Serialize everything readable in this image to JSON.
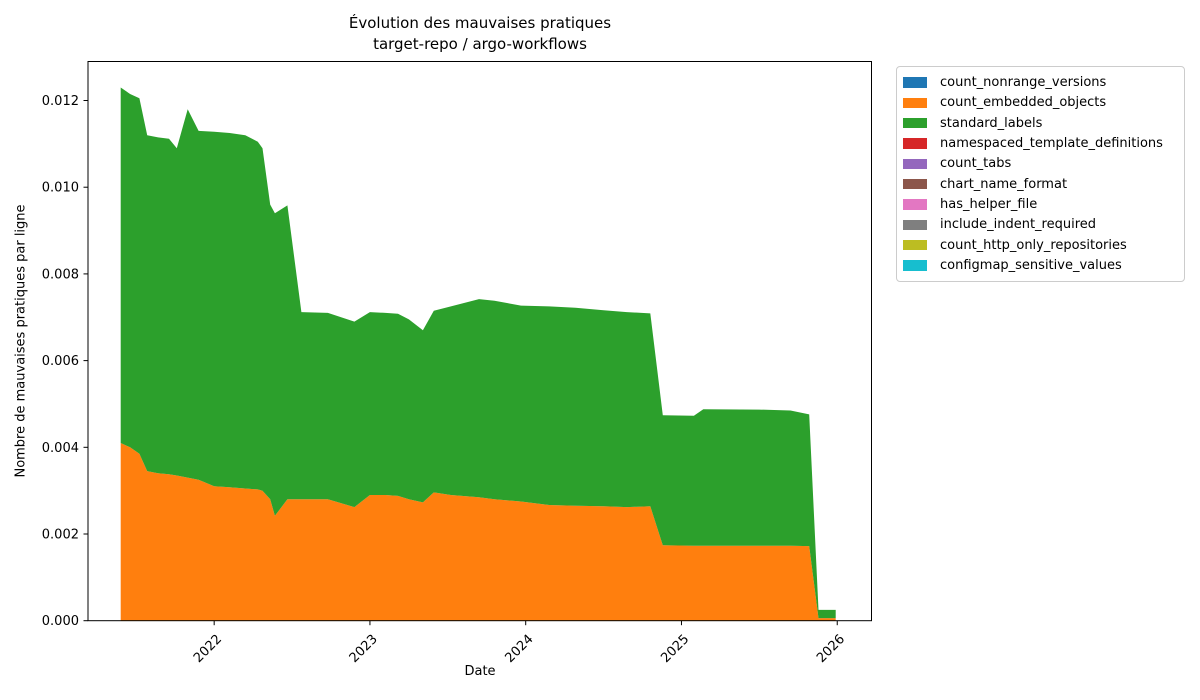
{
  "title": {
    "line1": "Évolution des mauvaises pratiques",
    "line2": "target-repo / argo-workflows"
  },
  "axes": {
    "xlabel": "Date",
    "ylabel": "Nombre de mauvaises pratiques par ligne",
    "x_tick_labels": [
      "2022",
      "2023",
      "2024",
      "2025",
      "2026"
    ],
    "y_tick_labels": [
      "0.000",
      "0.002",
      "0.004",
      "0.006",
      "0.008",
      "0.010",
      "0.012"
    ]
  },
  "legend": {
    "items": [
      {
        "label": "count_nonrange_versions",
        "color": "#1f77b4"
      },
      {
        "label": "count_embedded_objects",
        "color": "#ff7f0e"
      },
      {
        "label": "standard_labels",
        "color": "#2ca02c"
      },
      {
        "label": "namespaced_template_definitions",
        "color": "#d62728"
      },
      {
        "label": "count_tabs",
        "color": "#9467bd"
      },
      {
        "label": "chart_name_format",
        "color": "#8c564b"
      },
      {
        "label": "has_helper_file",
        "color": "#e377c2"
      },
      {
        "label": "include_indent_required",
        "color": "#7f7f7f"
      },
      {
        "label": "count_http_only_repositories",
        "color": "#bcbd22"
      },
      {
        "label": "configmap_sensitive_values",
        "color": "#17becf"
      }
    ]
  },
  "chart_data": {
    "type": "area",
    "stacked": true,
    "title": "Évolution des mauvaises pratiques — target-repo / argo-workflows",
    "xlabel": "Date",
    "ylabel": "Nombre de mauvaises pratiques par ligne",
    "legend_position": "outside upper right",
    "grid": false,
    "xlim": [
      2021.19,
      2026.22
    ],
    "ylim": [
      0,
      0.0129
    ],
    "x_tick_values": [
      2022,
      2023,
      2024,
      2025,
      2026
    ],
    "y_tick_values": [
      0,
      0.002,
      0.004,
      0.006,
      0.008,
      0.01,
      0.012
    ],
    "x": [
      2021.4,
      2021.46,
      2021.52,
      2021.57,
      2021.64,
      2021.71,
      2021.76,
      2021.83,
      2021.9,
      2022.0,
      2022.1,
      2022.2,
      2022.28,
      2022.31,
      2022.36,
      2022.39,
      2022.47,
      2022.56,
      2022.73,
      2022.9,
      2023.0,
      2023.1,
      2023.18,
      2023.25,
      2023.34,
      2023.41,
      2023.52,
      2023.7,
      2023.8,
      2023.97,
      2024.15,
      2024.32,
      2024.5,
      2024.65,
      2024.8,
      2024.88,
      2025.08,
      2025.14,
      2025.5,
      2025.7,
      2025.82,
      2025.88,
      2025.99
    ],
    "series": [
      {
        "name": "count_nonrange_versions",
        "color": "#1f77b4",
        "values": [
          0,
          0,
          0,
          0,
          0,
          0,
          0,
          0,
          0,
          0,
          0,
          0,
          0,
          0,
          0,
          0,
          0,
          0,
          0,
          0,
          0,
          0,
          0,
          0,
          0,
          0,
          0,
          0,
          0,
          0,
          0,
          0,
          0,
          0,
          0,
          0,
          0,
          0,
          0,
          0,
          0,
          0,
          0
        ]
      },
      {
        "name": "count_embedded_objects",
        "color": "#ff7f0e",
        "values": [
          0.0041,
          0.004,
          0.00385,
          0.00345,
          0.0034,
          0.00338,
          0.00335,
          0.0033,
          0.00325,
          0.0031,
          0.00308,
          0.00305,
          0.00303,
          0.003,
          0.0028,
          0.00242,
          0.0028,
          0.0028,
          0.0028,
          0.00262,
          0.0029,
          0.0029,
          0.00288,
          0.0028,
          0.00273,
          0.00296,
          0.0029,
          0.00285,
          0.0028,
          0.00275,
          0.00267,
          0.00265,
          0.00264,
          0.00262,
          0.00264,
          0.00174,
          0.00173,
          0.00173,
          0.00173,
          0.00173,
          0.00172,
          6e-05,
          6e-05
        ]
      },
      {
        "name": "standard_labels",
        "color": "#2ca02c",
        "values": [
          0.0082,
          0.00815,
          0.0082,
          0.00775,
          0.00775,
          0.00774,
          0.00755,
          0.0085,
          0.00805,
          0.00818,
          0.00817,
          0.00815,
          0.00802,
          0.0079,
          0.0068,
          0.00698,
          0.00678,
          0.00432,
          0.0043,
          0.00428,
          0.00422,
          0.0042,
          0.0042,
          0.00415,
          0.00397,
          0.00419,
          0.00435,
          0.00457,
          0.00458,
          0.00452,
          0.00458,
          0.00457,
          0.00452,
          0.0045,
          0.00445,
          0.003,
          0.003,
          0.00315,
          0.00314,
          0.00312,
          0.00304,
          0.00019,
          0.00019
        ]
      },
      {
        "name": "namespaced_template_definitions",
        "color": "#d62728",
        "values": [
          0,
          0,
          0,
          0,
          0,
          0,
          0,
          0,
          0,
          0,
          0,
          0,
          0,
          0,
          0,
          0,
          0,
          0,
          0,
          0,
          0,
          0,
          0,
          0,
          0,
          0,
          0,
          0,
          0,
          0,
          0,
          0,
          0,
          0,
          0,
          0,
          0,
          0,
          0,
          0,
          0,
          0,
          0
        ]
      },
      {
        "name": "count_tabs",
        "color": "#9467bd",
        "values": [
          0,
          0,
          0,
          0,
          0,
          0,
          0,
          0,
          0,
          0,
          0,
          0,
          0,
          0,
          0,
          0,
          0,
          0,
          0,
          0,
          0,
          0,
          0,
          0,
          0,
          0,
          0,
          0,
          0,
          0,
          0,
          0,
          0,
          0,
          0,
          0,
          0,
          0,
          0,
          0,
          0,
          0,
          0
        ]
      },
      {
        "name": "chart_name_format",
        "color": "#8c564b",
        "values": [
          0,
          0,
          0,
          0,
          0,
          0,
          0,
          0,
          0,
          0,
          0,
          0,
          0,
          0,
          0,
          0,
          0,
          0,
          0,
          0,
          0,
          0,
          0,
          0,
          0,
          0,
          0,
          0,
          0,
          0,
          0,
          0,
          0,
          0,
          0,
          0,
          0,
          0,
          0,
          0,
          0,
          0,
          0
        ]
      },
      {
        "name": "has_helper_file",
        "color": "#e377c2",
        "values": [
          0,
          0,
          0,
          0,
          0,
          0,
          0,
          0,
          0,
          0,
          0,
          0,
          0,
          0,
          0,
          0,
          0,
          0,
          0,
          0,
          0,
          0,
          0,
          0,
          0,
          0,
          0,
          0,
          0,
          0,
          0,
          0,
          0,
          0,
          0,
          0,
          0,
          0,
          0,
          0,
          0,
          0,
          0
        ]
      },
      {
        "name": "include_indent_required",
        "color": "#7f7f7f",
        "values": [
          0,
          0,
          0,
          0,
          0,
          0,
          0,
          0,
          0,
          0,
          0,
          0,
          0,
          0,
          0,
          0,
          0,
          0,
          0,
          0,
          0,
          0,
          0,
          0,
          0,
          0,
          0,
          0,
          0,
          0,
          0,
          0,
          0,
          0,
          0,
          0,
          0,
          0,
          0,
          0,
          0,
          0,
          0
        ]
      },
      {
        "name": "count_http_only_repositories",
        "color": "#bcbd22",
        "values": [
          0,
          0,
          0,
          0,
          0,
          0,
          0,
          0,
          0,
          0,
          0,
          0,
          0,
          0,
          0,
          0,
          0,
          0,
          0,
          0,
          0,
          0,
          0,
          0,
          0,
          0,
          0,
          0,
          0,
          0,
          0,
          0,
          0,
          0,
          0,
          0,
          0,
          0,
          0,
          0,
          0,
          0,
          0
        ]
      },
      {
        "name": "configmap_sensitive_values",
        "color": "#17becf",
        "values": [
          0,
          0,
          0,
          0,
          0,
          0,
          0,
          0,
          0,
          0,
          0,
          0,
          0,
          0,
          0,
          0,
          0,
          0,
          0,
          0,
          0,
          0,
          0,
          0,
          0,
          0,
          0,
          0,
          0,
          0,
          0,
          0,
          0,
          0,
          0,
          0,
          0,
          0,
          0,
          0,
          0,
          0,
          0
        ]
      }
    ]
  }
}
